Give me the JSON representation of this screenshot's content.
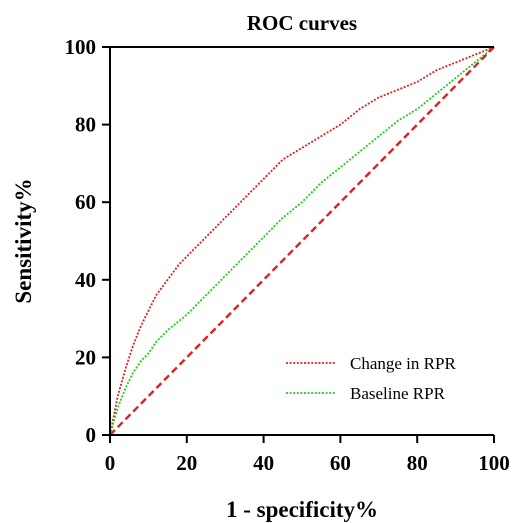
{
  "chart_data": {
    "type": "line",
    "title": "ROC curves",
    "xlabel": "1 - specificity%",
    "ylabel": "Sensitivity%",
    "xlim": [
      0,
      100
    ],
    "ylim": [
      0,
      100
    ],
    "xticks": [
      "0",
      "20",
      "40",
      "60",
      "80",
      "100"
    ],
    "yticks": [
      "0",
      "20",
      "40",
      "60",
      "80",
      "100"
    ],
    "grid": false,
    "legend_position": "bottom-right",
    "series": [
      {
        "name": "Change in RPR",
        "color": "#e02020",
        "style": "dotted",
        "x": [
          0,
          2,
          4,
          6,
          8,
          10,
          12,
          15,
          18,
          20,
          25,
          30,
          35,
          40,
          45,
          50,
          55,
          60,
          65,
          70,
          75,
          80,
          85,
          90,
          95,
          100
        ],
        "y": [
          0,
          10,
          17,
          23,
          28,
          32,
          36,
          40,
          44,
          46,
          51,
          56,
          61,
          66,
          71,
          74,
          77,
          80,
          84,
          87,
          89,
          91,
          94,
          96,
          98,
          100
        ]
      },
      {
        "name": "Baseline RPR",
        "color": "#22cc22",
        "style": "dotted",
        "x": [
          0,
          2,
          4,
          6,
          8,
          10,
          12,
          15,
          20,
          25,
          30,
          35,
          40,
          45,
          50,
          55,
          60,
          65,
          70,
          75,
          80,
          85,
          90,
          95,
          100
        ],
        "y": [
          0,
          7,
          12,
          16,
          19,
          21,
          24,
          27,
          31,
          36,
          41,
          46,
          51,
          56,
          60,
          65,
          69,
          73,
          77,
          81,
          84,
          88,
          92,
          96,
          100
        ]
      },
      {
        "name": "",
        "color": "#e02020",
        "style": "dashed",
        "x": [
          0,
          100
        ],
        "y": [
          0,
          100
        ]
      }
    ]
  }
}
